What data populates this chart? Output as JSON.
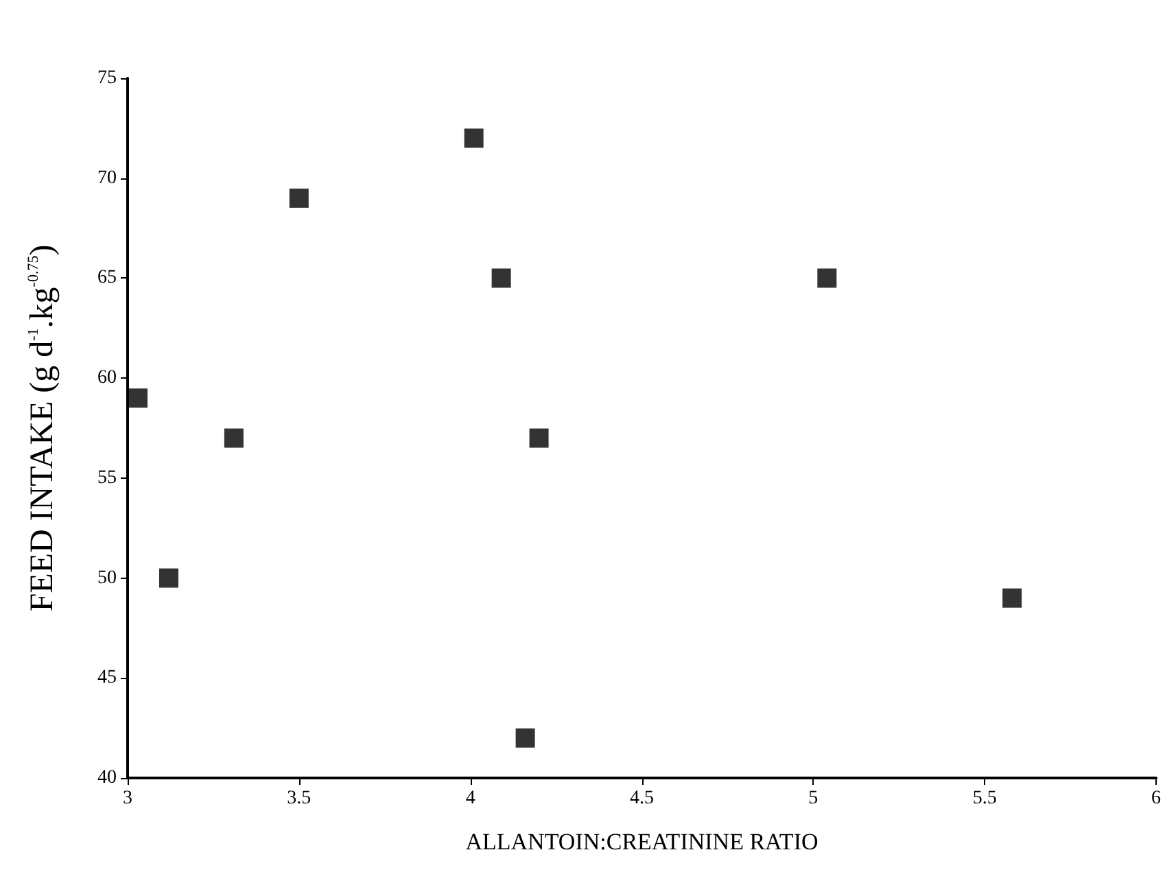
{
  "chart_data": {
    "type": "scatter",
    "xlabel": "ALLANTOIN:CREATININE RATIO",
    "ylabel": "FEED INTAKE (g d$^{-1}$.kg$^{-0.75}$)",
    "x": [
      3.03,
      3.12,
      3.31,
      3.5,
      4.01,
      4.09,
      4.16,
      4.2,
      5.04,
      5.58
    ],
    "values": [
      59,
      50,
      57,
      69,
      72,
      65,
      42,
      57,
      65,
      49
    ],
    "color": "#000000",
    "marker": "square",
    "xlim": [
      3,
      6
    ],
    "xticks": [
      3,
      3.5,
      4,
      4.5,
      5,
      5.5,
      6
    ],
    "ylim": [
      40,
      75
    ],
    "yticks": [
      40,
      45,
      50,
      55,
      60,
      65,
      70,
      75
    ],
    "grid": false
  }
}
